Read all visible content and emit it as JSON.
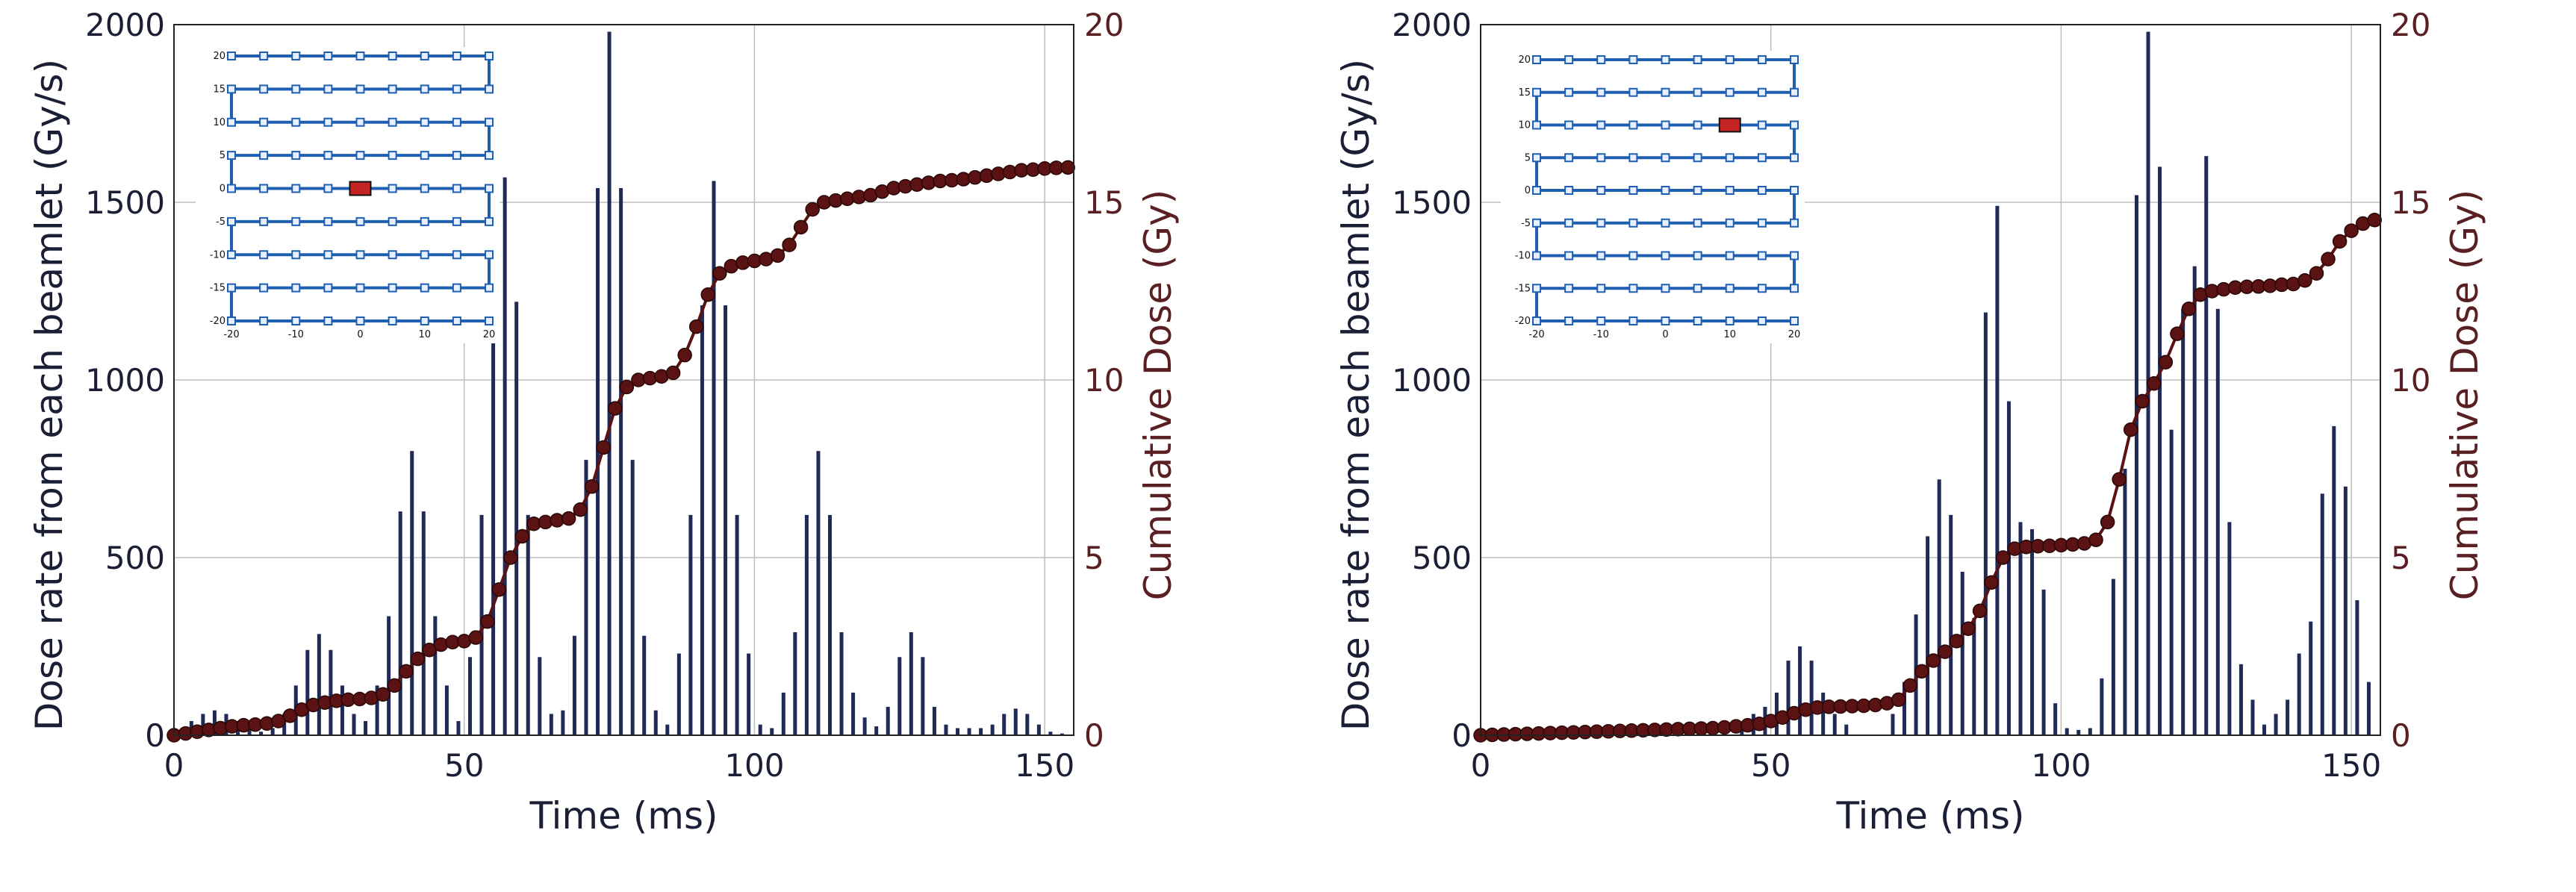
{
  "chart_data": [
    {
      "type": "bar",
      "title": "",
      "xlabel": "Time (ms)",
      "ylabel": "Dose rate from each beamlet (Gy/s)",
      "y2label": "Cumulative Dose (Gy)",
      "xlim": [
        0,
        155
      ],
      "ylim": [
        0,
        2000
      ],
      "y2lim": [
        0,
        20
      ],
      "xticks": [
        0,
        50,
        100,
        150
      ],
      "yticks": [
        0,
        500,
        1000,
        1500,
        2000
      ],
      "y2ticks": [
        0,
        5,
        10,
        15,
        20
      ],
      "grid": true,
      "colors": {
        "bars": "#1f2a56",
        "cumulative": "#5a1212",
        "axis_right": "#5a1f22",
        "grid": "#bdbdbd",
        "inset_path": "#1f5fb2",
        "inset_marker": "#c42424"
      },
      "series": [
        {
          "x": [
            1,
            3,
            5,
            7,
            9,
            11,
            13,
            15,
            17,
            19,
            21,
            23,
            25,
            27,
            29,
            31,
            33,
            35,
            37,
            39,
            41,
            43,
            45,
            47,
            49,
            51,
            53,
            55,
            57,
            59,
            61,
            63,
            65,
            67,
            69,
            71,
            73,
            75,
            77,
            79,
            81,
            83,
            85,
            87,
            89,
            91,
            93,
            95,
            97,
            99,
            101,
            103,
            105,
            107,
            109,
            111,
            113,
            115,
            117,
            119,
            121,
            123,
            125,
            127,
            129,
            131,
            133,
            135,
            137,
            139,
            141,
            143,
            145,
            147,
            149,
            151,
            153
          ],
          "values": [
            10,
            40,
            60,
            70,
            60,
            40,
            20,
            10,
            20,
            60,
            140,
            240,
            285,
            240,
            140,
            60,
            40,
            140,
            335,
            630,
            800,
            630,
            335,
            140,
            40,
            220,
            620,
            1220,
            1570,
            1220,
            620,
            220,
            60,
            70,
            280,
            775,
            1540,
            1980,
            1540,
            775,
            280,
            70,
            30,
            230,
            620,
            1210,
            1560,
            1210,
            620,
            230,
            30,
            20,
            120,
            290,
            620,
            800,
            620,
            290,
            120,
            50,
            25,
            80,
            220,
            290,
            220,
            80,
            30,
            20,
            20,
            20,
            30,
            60,
            75,
            60,
            30,
            10,
            5
          ]
        },
        {
          "type": "line",
          "x": [
            0,
            2,
            4,
            6,
            8,
            10,
            12,
            14,
            16,
            18,
            20,
            22,
            24,
            26,
            28,
            30,
            32,
            34,
            36,
            38,
            40,
            42,
            44,
            46,
            48,
            50,
            52,
            54,
            56,
            58,
            60,
            62,
            64,
            66,
            68,
            70,
            72,
            74,
            76,
            78,
            80,
            82,
            84,
            86,
            88,
            90,
            92,
            94,
            96,
            98,
            100,
            102,
            104,
            106,
            108,
            110,
            112,
            114,
            116,
            118,
            120,
            122,
            124,
            126,
            128,
            130,
            132,
            134,
            136,
            138,
            140,
            142,
            144,
            146,
            148,
            150,
            152,
            154
          ],
          "values": [
            0,
            0.05,
            0.1,
            0.15,
            0.2,
            0.25,
            0.28,
            0.3,
            0.33,
            0.4,
            0.55,
            0.72,
            0.85,
            0.92,
            0.97,
            1.0,
            1.02,
            1.05,
            1.15,
            1.4,
            1.8,
            2.15,
            2.4,
            2.55,
            2.62,
            2.65,
            2.75,
            3.2,
            4.1,
            5.0,
            5.6,
            5.95,
            6.0,
            6.05,
            6.1,
            6.35,
            7.0,
            8.1,
            9.2,
            9.8,
            10.0,
            10.05,
            10.1,
            10.2,
            10.7,
            11.5,
            12.4,
            13.0,
            13.2,
            13.3,
            13.35,
            13.4,
            13.5,
            13.8,
            14.3,
            14.8,
            15.0,
            15.05,
            15.1,
            15.15,
            15.2,
            15.3,
            15.4,
            15.45,
            15.5,
            15.55,
            15.6,
            15.62,
            15.65,
            15.7,
            15.75,
            15.8,
            15.85,
            15.9,
            15.92,
            15.95,
            15.97,
            15.98
          ]
        }
      ],
      "inset": {
        "xlim": [
          -20,
          20
        ],
        "ylim": [
          -20,
          20
        ],
        "xticks": [
          "-20",
          "-10",
          "0",
          "10",
          "20"
        ],
        "yticks": [
          "20",
          "15",
          "10",
          "5",
          "0",
          "-5",
          "-10",
          "-15",
          "-20"
        ],
        "marker": [
          0,
          0
        ]
      }
    },
    {
      "type": "bar",
      "title": "",
      "xlabel": "Time (ms)",
      "ylabel": "Dose rate from each beamlet (Gy/s)",
      "y2label": "Cumulative Dose (Gy)",
      "xlim": [
        0,
        155
      ],
      "ylim": [
        0,
        2000
      ],
      "y2lim": [
        0,
        20
      ],
      "xticks": [
        0,
        50,
        100,
        150
      ],
      "yticks": [
        0,
        500,
        1000,
        1500,
        2000
      ],
      "y2ticks": [
        0,
        5,
        10,
        15,
        20
      ],
      "grid": true,
      "colors": {
        "bars": "#1f2a56",
        "cumulative": "#5a1212",
        "axis_right": "#5a1f22",
        "grid": "#bdbdbd",
        "inset_path": "#1f5fb2",
        "inset_marker": "#c42424"
      },
      "series": [
        {
          "x": [
            45,
            47,
            49,
            51,
            53,
            55,
            57,
            59,
            61,
            63,
            71,
            73,
            75,
            77,
            79,
            81,
            83,
            85,
            87,
            89,
            91,
            93,
            95,
            97,
            99,
            101,
            103,
            105,
            107,
            109,
            111,
            113,
            115,
            117,
            119,
            121,
            123,
            125,
            127,
            129,
            131,
            133,
            135,
            137,
            139,
            141,
            143,
            145,
            147,
            149,
            151,
            153
          ],
          "values": [
            30,
            60,
            80,
            120,
            210,
            250,
            210,
            120,
            60,
            30,
            60,
            150,
            340,
            560,
            720,
            620,
            460,
            330,
            1190,
            1490,
            940,
            600,
            580,
            410,
            90,
            20,
            15,
            20,
            160,
            440,
            750,
            1520,
            1980,
            1600,
            860,
            1200,
            1320,
            1630,
            1200,
            600,
            200,
            100,
            30,
            60,
            100,
            230,
            320,
            680,
            870,
            700,
            380,
            150
          ]
        },
        {
          "type": "line",
          "x": [
            0,
            2,
            4,
            6,
            8,
            10,
            12,
            14,
            16,
            18,
            20,
            22,
            24,
            26,
            28,
            30,
            32,
            34,
            36,
            38,
            40,
            42,
            44,
            46,
            48,
            50,
            52,
            54,
            56,
            58,
            60,
            62,
            64,
            66,
            68,
            70,
            72,
            74,
            76,
            78,
            80,
            82,
            84,
            86,
            88,
            90,
            92,
            94,
            96,
            98,
            100,
            102,
            104,
            106,
            108,
            110,
            112,
            114,
            116,
            118,
            120,
            122,
            124,
            126,
            128,
            130,
            132,
            134,
            136,
            138,
            140,
            142,
            144,
            146,
            148,
            150,
            152,
            154
          ],
          "values": [
            0,
            0.01,
            0.02,
            0.03,
            0.04,
            0.05,
            0.06,
            0.07,
            0.08,
            0.09,
            0.1,
            0.11,
            0.12,
            0.13,
            0.14,
            0.15,
            0.16,
            0.17,
            0.18,
            0.19,
            0.2,
            0.22,
            0.25,
            0.28,
            0.32,
            0.4,
            0.5,
            0.62,
            0.72,
            0.78,
            0.8,
            0.81,
            0.82,
            0.83,
            0.85,
            0.9,
            1.0,
            1.4,
            1.8,
            2.1,
            2.35,
            2.65,
            3.0,
            3.5,
            4.3,
            5.0,
            5.25,
            5.3,
            5.32,
            5.33,
            5.35,
            5.37,
            5.4,
            5.5,
            6.0,
            7.2,
            8.6,
            9.4,
            9.9,
            10.5,
            11.3,
            12.0,
            12.4,
            12.5,
            12.55,
            12.6,
            12.62,
            12.63,
            12.65,
            12.68,
            12.7,
            12.8,
            13.0,
            13.4,
            13.9,
            14.2,
            14.4,
            14.5
          ]
        }
      ],
      "inset": {
        "xlim": [
          -20,
          20
        ],
        "ylim": [
          -20,
          20
        ],
        "xticks": [
          "-20",
          "-10",
          "0",
          "10",
          "20"
        ],
        "yticks": [
          "20",
          "15",
          "10",
          "5",
          "0",
          "-5",
          "-10",
          "-15",
          "-20"
        ],
        "marker": [
          10,
          10
        ]
      }
    }
  ]
}
